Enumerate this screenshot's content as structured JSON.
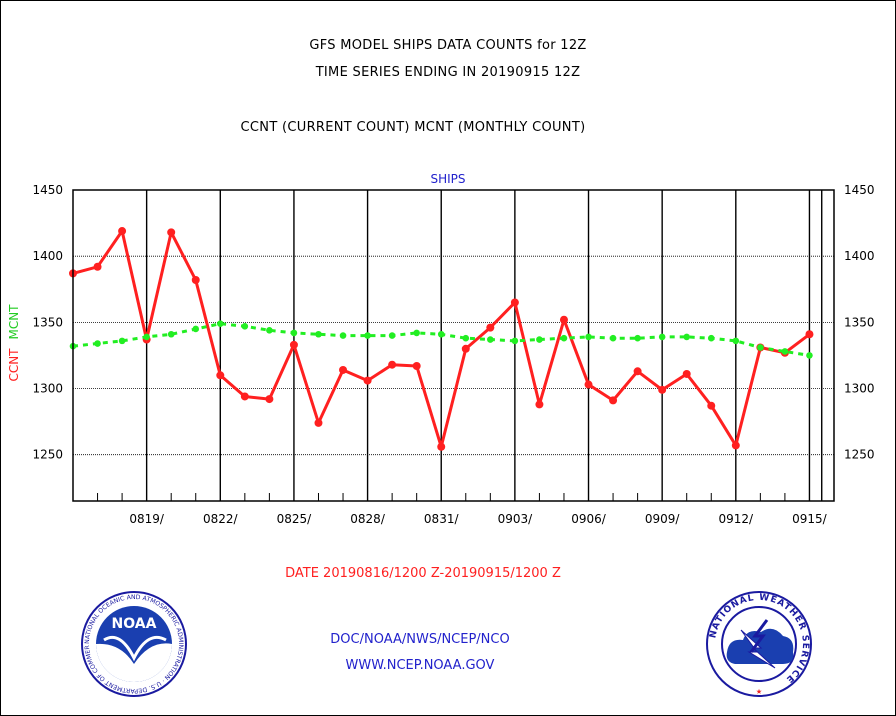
{
  "header": {
    "title": "GFS MODEL SHIPS DATA COUNTS for 12Z",
    "title2": "TIME SERIES ENDING IN 20190915 12Z",
    "subtitle": "CCNT (CURRENT COUNT) MCNT (MONTHLY COUNT)"
  },
  "chart_data": {
    "type": "line",
    "title": "SHIPS",
    "ylabel_left": [
      "CCNT",
      "MCNT"
    ],
    "ylim": [
      1215,
      1450
    ],
    "yticks": [
      1250,
      1300,
      1350,
      1400,
      1450
    ],
    "x_range": [
      "0816",
      "0916"
    ],
    "date_ticks": [
      "0819/",
      "0822/",
      "0825/",
      "0828/",
      "0831/",
      "0903/",
      "0906/",
      "0909/",
      "0912/",
      "0915/"
    ],
    "grid": true,
    "series": [
      {
        "name": "CCNT",
        "color": "#ff2020",
        "values": [
          1387,
          1392,
          1419,
          1337,
          1418,
          1382,
          1310,
          1294,
          1292,
          1333,
          1274,
          1314,
          1306,
          1318,
          1317,
          1256,
          1330,
          1346,
          1365,
          1288,
          1352,
          1303,
          1291,
          1313,
          1299,
          1311,
          1287,
          1257,
          1331,
          1327,
          1341
        ]
      },
      {
        "name": "MCNT",
        "color": "#22ee22",
        "values": [
          1332,
          1334,
          1336,
          1339,
          1341,
          1345,
          1349,
          1347,
          1344,
          1342,
          1341,
          1340,
          1340,
          1340,
          1342,
          1341,
          1338,
          1337,
          1336,
          1337,
          1338,
          1339,
          1338,
          1338,
          1339,
          1339,
          1338,
          1336,
          1331,
          1328,
          1325
        ]
      }
    ]
  },
  "date_range": "DATE 20190816/1200 Z-20190915/1200 Z",
  "footer": {
    "line1": "DOC/NOAA/NWS/NCEP/NCO",
    "line2": "WWW.NCEP.NOAA.GOV"
  },
  "logos": {
    "noaa_text": "NOAA",
    "noaa_ring": "NATIONAL OCEANIC AND ATMOSPHERIC ADMINISTRATION · U.S. DEPARTMENT OF COMMERCE",
    "nws_ring": "NATIONAL WEATHER SERVICE"
  }
}
